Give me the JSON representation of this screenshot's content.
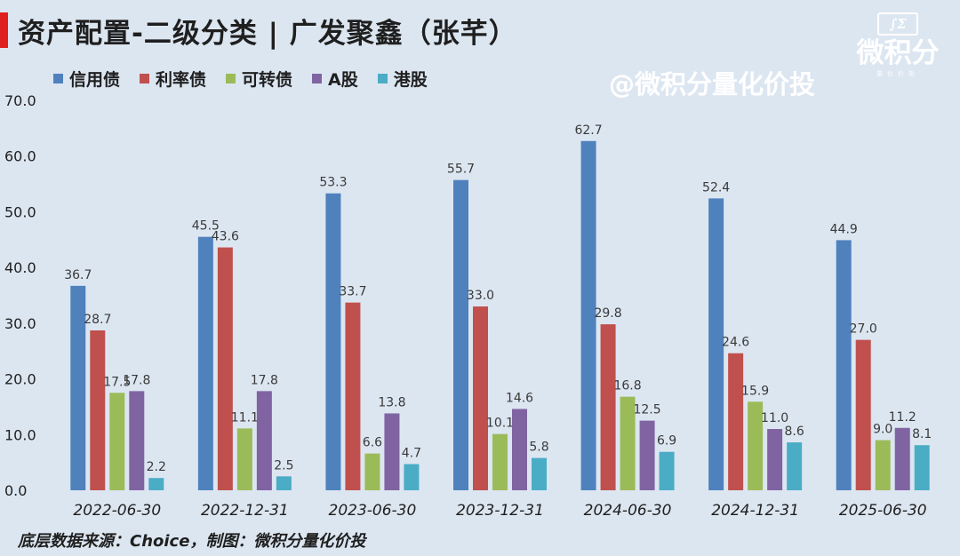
{
  "header": {
    "title": "资产配置-二级分类 | 广发聚鑫（张芊）",
    "watermark": "@微积分量化价投",
    "logo_mark": "∫Σ",
    "logo_name": "微积分",
    "logo_sub": "量化价投"
  },
  "footer": {
    "source": "底层数据来源：Choice，制图：微积分量化价投"
  },
  "chart_data": {
    "type": "bar",
    "title": "资产配置-二级分类 | 广发聚鑫（张芊）",
    "categories": [
      "2022-06-30",
      "2022-12-31",
      "2023-06-30",
      "2023-12-31",
      "2024-06-30",
      "2024-12-31",
      "2025-06-30"
    ],
    "series": [
      {
        "name": "信用债",
        "color": "#4f81bd",
        "values": [
          36.7,
          45.5,
          53.3,
          55.7,
          62.7,
          52.4,
          44.9
        ]
      },
      {
        "name": "利率债",
        "color": "#c0504d",
        "values": [
          28.7,
          43.6,
          33.7,
          33.0,
          29.8,
          24.6,
          27.0
        ]
      },
      {
        "name": "可转债",
        "color": "#9bbb59",
        "values": [
          17.5,
          11.1,
          6.6,
          10.1,
          16.8,
          15.9,
          9.0
        ]
      },
      {
        "name": "A股",
        "color": "#8064a2",
        "values": [
          17.8,
          17.8,
          13.8,
          14.6,
          12.5,
          11.0,
          11.2
        ]
      },
      {
        "name": "港股",
        "color": "#4bacc6",
        "values": [
          2.2,
          2.5,
          4.7,
          5.8,
          6.9,
          8.6,
          8.1
        ]
      }
    ],
    "ylim": [
      0,
      70
    ],
    "yticks": [
      "0.0",
      "10.0",
      "20.0",
      "30.0",
      "40.0",
      "50.0",
      "60.0",
      "70.0"
    ],
    "grid": false,
    "legend": "top-left"
  }
}
